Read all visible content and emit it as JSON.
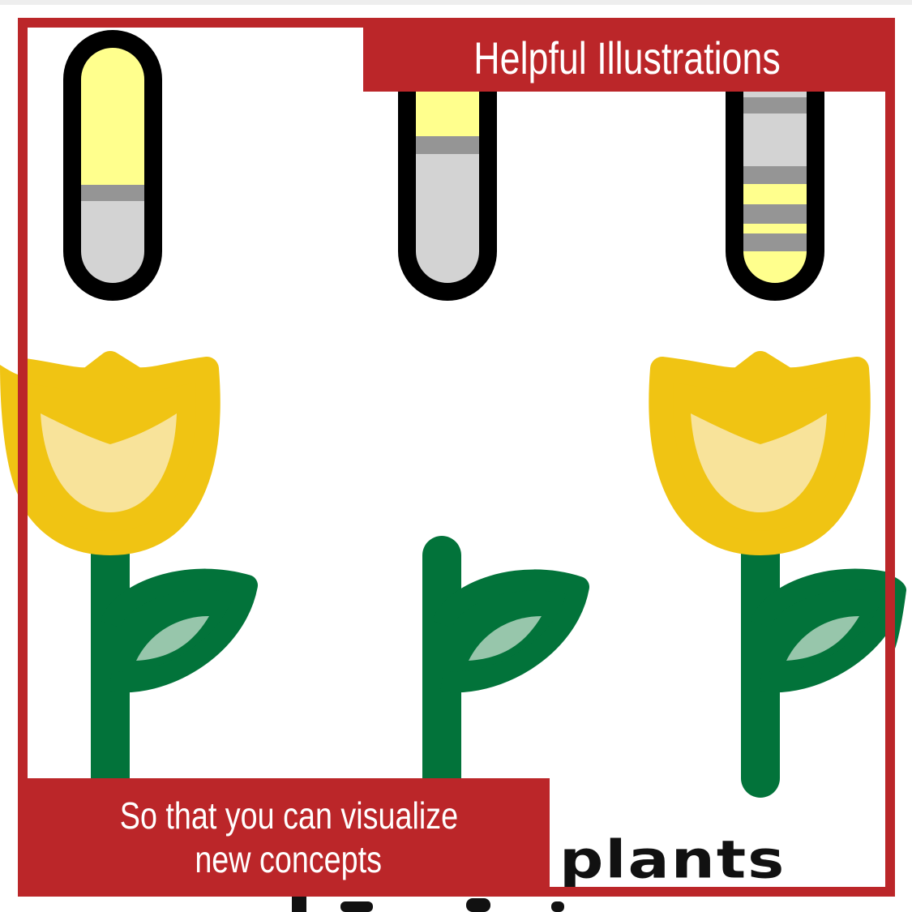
{
  "header": {
    "title": "Helpful Illustrations"
  },
  "caption": {
    "line1": "So that you can visualize",
    "line2": "new concepts"
  },
  "illustration": {
    "partial_word": "plants"
  },
  "colors": {
    "brand_red": "#bb2629",
    "flower_yellow": "#f0c413",
    "flower_inner": "#f8e39a",
    "stem_green": "#02733a",
    "leaf_inner": "#97c6ab",
    "tube_yellow": "#ffff8d",
    "tube_gray": "#d3d3d3",
    "band_gray": "#959595",
    "outline": "#000000"
  },
  "icons": [
    "test-tube-icon",
    "tulip-icon",
    "stem-icon"
  ]
}
